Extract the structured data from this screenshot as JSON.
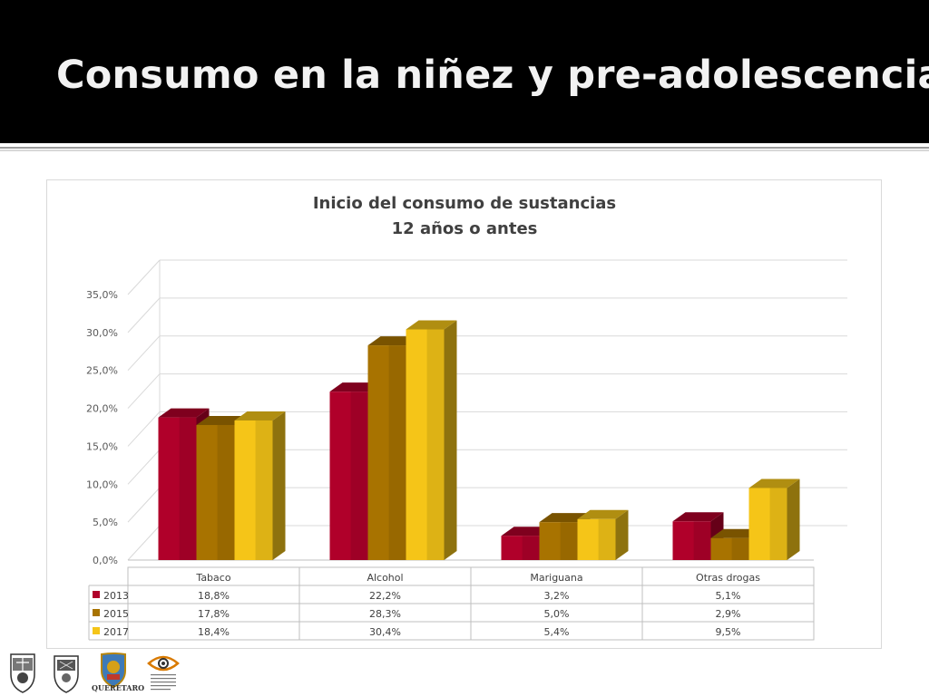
{
  "slide": {
    "title": "Consumo en la niñez y pre-adolescencia"
  },
  "chart_data": {
    "type": "bar",
    "title": "Inicio del consumo de sustancias",
    "subtitle": "12 años o antes",
    "categories": [
      "Tabaco",
      "Alcohol",
      "Mariguana",
      "Otras drogas"
    ],
    "series": [
      {
        "name": "2013",
        "values": [
          18.8,
          22.2,
          3.2,
          5.1
        ],
        "labels": [
          "18,8%",
          "22,2%",
          "3,2%",
          "5,1%"
        ],
        "color": "#b0002a"
      },
      {
        "name": "2015",
        "values": [
          17.8,
          28.3,
          5.0,
          2.9
        ],
        "labels": [
          "17,8%",
          "28,3%",
          "5,0%",
          "2,9%"
        ],
        "color": "#a87300"
      },
      {
        "name": "2017",
        "values": [
          18.4,
          30.4,
          5.4,
          9.5
        ],
        "labels": [
          "18,4%",
          "30,4%",
          "5,4%",
          "9,5%"
        ],
        "color": "#f5c518"
      }
    ],
    "y_ticks": [
      "0,0%",
      "5,0%",
      "10,0%",
      "15,0%",
      "20,0%",
      "25,0%",
      "30,0%",
      "35,0%"
    ],
    "ylim": [
      0,
      35
    ],
    "grid": true,
    "legend": "data-table",
    "style": "3d-clustered-column"
  },
  "footer": {
    "logo_text": "QUERÉTARO",
    "logo_icons": [
      "crest-icon",
      "crest-icon",
      "crest-icon",
      "eye-logo-icon"
    ]
  }
}
